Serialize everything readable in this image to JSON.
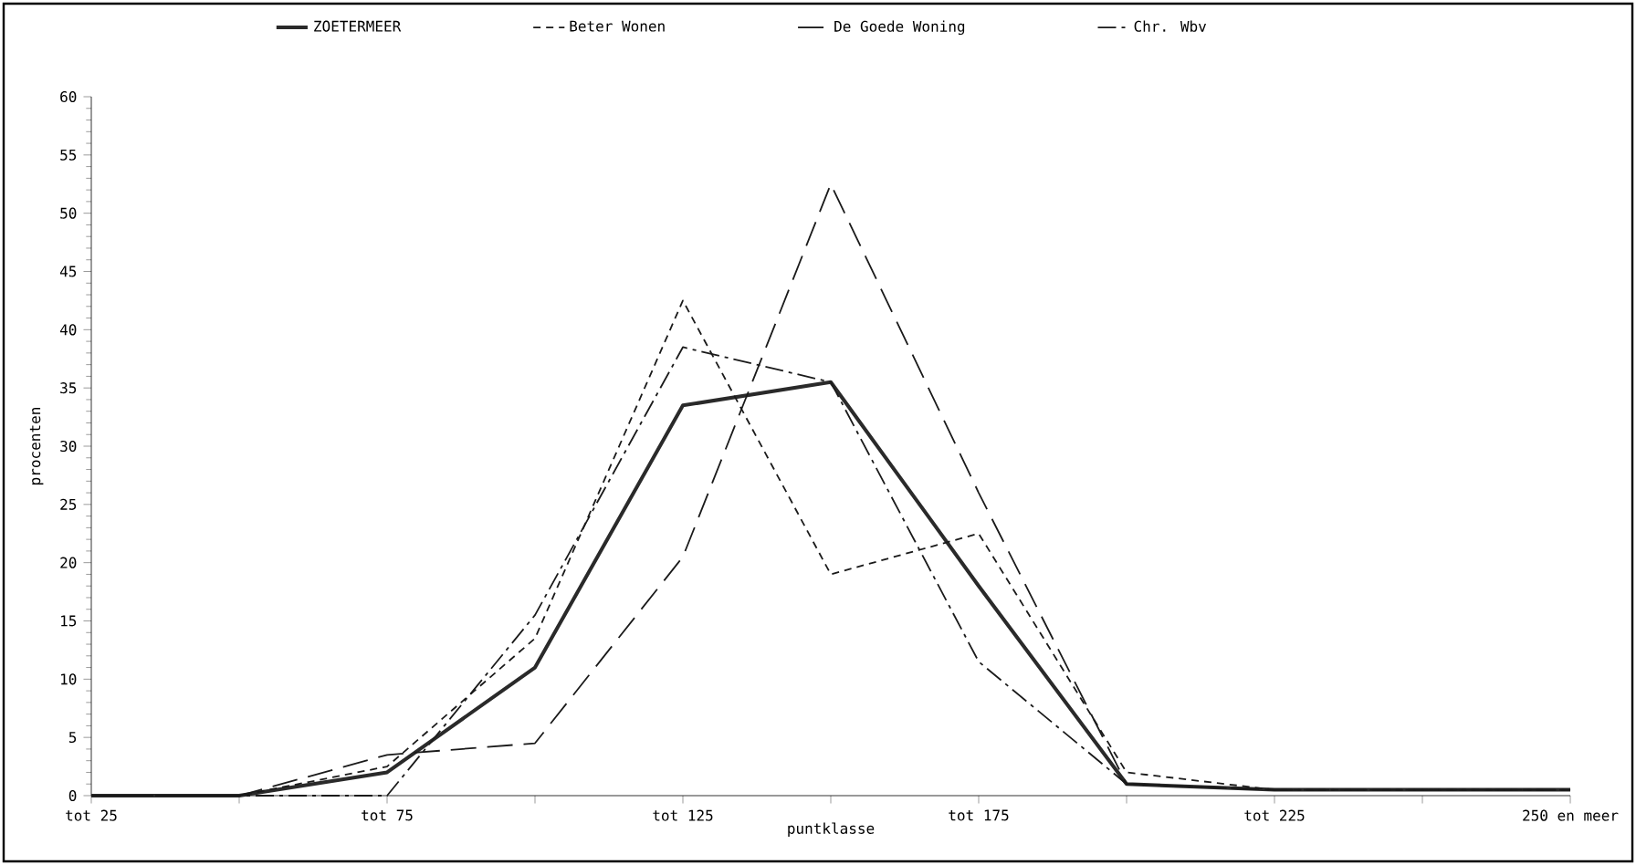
{
  "chart_data": {
    "type": "line",
    "xlabel": "puntklasse",
    "ylabel": "procenten",
    "categories": [
      "tot 25",
      null,
      "tot 75",
      null,
      "tot 125",
      null,
      "tot 175",
      null,
      "tot 225",
      null,
      "250 en meer"
    ],
    "series": [
      {
        "name": "ZOETERMEER",
        "color": "#2a2a2a",
        "line_style": "solid",
        "values": [
          0,
          0,
          2,
          11,
          33.5,
          35.5,
          18,
          1,
          0.5,
          0.5,
          0.5
        ]
      },
      {
        "name": "Beter Wonen",
        "color": "#1a1a1a",
        "line_style": "dashed",
        "values": [
          0,
          0,
          2.5,
          13.5,
          42.5,
          19,
          22.5,
          2,
          0.5,
          0.5,
          0.5
        ]
      },
      {
        "name": "De Goede Woning",
        "color": "#1a1a1a",
        "line_style": "longdashed",
        "values": [
          0,
          0,
          3.5,
          4.5,
          20.5,
          52.5,
          26,
          1,
          0.5,
          0.5,
          0.5
        ]
      },
      {
        "name": "Chr. Wbv",
        "color": "#1a1a1a",
        "line_style": "dashdot",
        "values": [
          0,
          0,
          0,
          15.5,
          38.5,
          35.5,
          11.5,
          1,
          0.5,
          0.5,
          0.5
        ]
      }
    ],
    "ylim": [
      0,
      60
    ],
    "yticks": [
      0,
      5,
      10,
      15,
      20,
      25,
      30,
      35,
      40,
      45,
      50,
      55,
      60
    ],
    "legend": "top",
    "grid": false,
    "marker": "none"
  }
}
